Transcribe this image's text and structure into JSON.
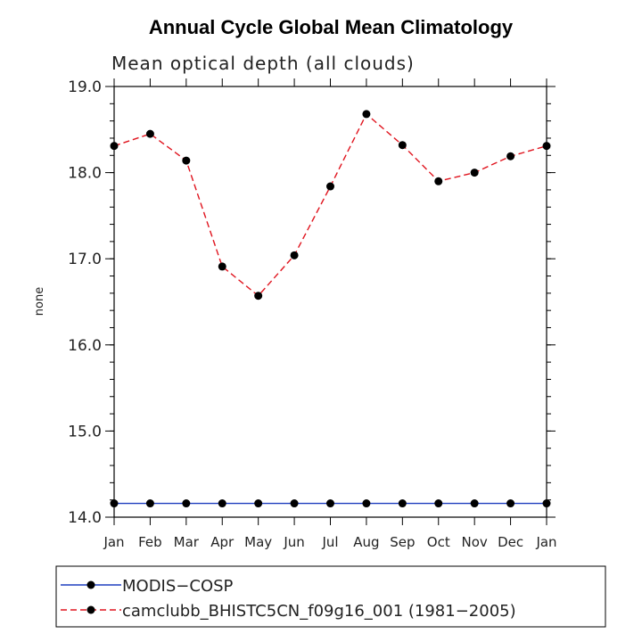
{
  "chart_data": {
    "type": "line",
    "title": "Annual Cycle Global Mean Climatology",
    "subtitle": "Mean optical depth (all clouds)",
    "ylabel": "none",
    "xlabel": "",
    "categories": [
      "Jan",
      "Feb",
      "Mar",
      "Apr",
      "May",
      "Jun",
      "Jul",
      "Aug",
      "Sep",
      "Oct",
      "Nov",
      "Dec",
      "Jan"
    ],
    "ylim": [
      14.0,
      19.0
    ],
    "yticks": [
      "14.0",
      "15.0",
      "16.0",
      "17.0",
      "18.0",
      "19.0"
    ],
    "series": [
      {
        "name": "MODIS−COSP",
        "color": "#1f3fbf",
        "style": "solid",
        "values": [
          14.16,
          14.16,
          14.16,
          14.16,
          14.16,
          14.16,
          14.16,
          14.16,
          14.16,
          14.16,
          14.16,
          14.16,
          14.16
        ]
      },
      {
        "name": "camclubb_BHISTC5CN_f09g16_001 (1981−2005)",
        "color": "#e0141e",
        "style": "dashed",
        "values": [
          18.31,
          18.45,
          18.14,
          16.91,
          16.57,
          17.04,
          17.84,
          18.68,
          18.32,
          17.9,
          18.0,
          18.19,
          18.31
        ]
      }
    ]
  }
}
